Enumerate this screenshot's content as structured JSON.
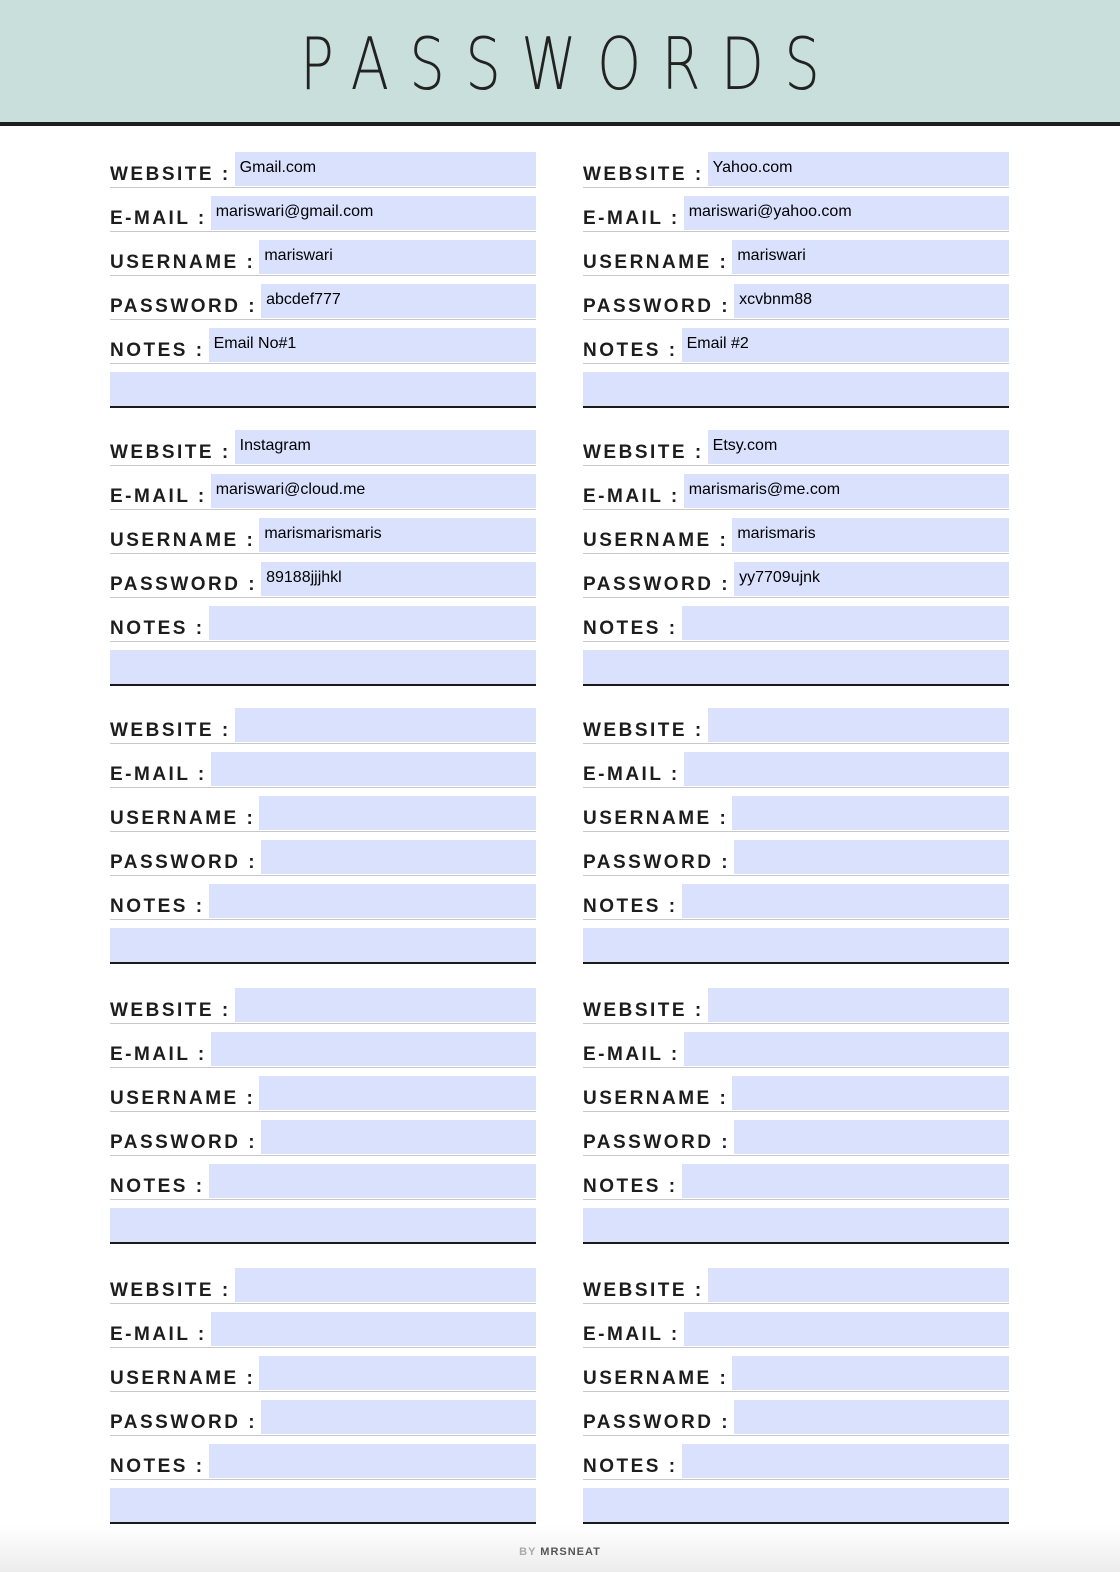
{
  "header": {
    "title": "PASSWORDS",
    "background": "#c8dfdb"
  },
  "labels": {
    "website": "WEBSITE :",
    "email": "E-MAIL :",
    "username": "USERNAME :",
    "password": "PASSWORD :",
    "notes": "NOTES :"
  },
  "field_color": "#d9e1fd",
  "cards": [
    {
      "website": "Gmail.com",
      "email": "mariswari@gmail.com",
      "username": "mariswari",
      "password": "abcdef777",
      "notes": "Email No#1"
    },
    {
      "website": "Yahoo.com",
      "email": "mariswari@yahoo.com",
      "username": "mariswari",
      "password": "xcvbnm88",
      "notes": "Email #2"
    },
    {
      "website": "Instagram",
      "email": "mariswari@cloud.me",
      "username": "marismarismaris",
      "password": "89188jjjhkl",
      "notes": ""
    },
    {
      "website": "Etsy.com",
      "email": "marismaris@me.com",
      "username": "marismaris",
      "password": "yy7709ujnk",
      "notes": ""
    },
    {
      "website": "",
      "email": "",
      "username": "",
      "password": "",
      "notes": ""
    },
    {
      "website": "",
      "email": "",
      "username": "",
      "password": "",
      "notes": ""
    },
    {
      "website": "",
      "email": "",
      "username": "",
      "password": "",
      "notes": ""
    },
    {
      "website": "",
      "email": "",
      "username": "",
      "password": "",
      "notes": ""
    },
    {
      "website": "",
      "email": "",
      "username": "",
      "password": "",
      "notes": ""
    },
    {
      "website": "",
      "email": "",
      "username": "",
      "password": "",
      "notes": ""
    }
  ],
  "footer": {
    "by": "BY",
    "brand": "MRSNEAT"
  }
}
